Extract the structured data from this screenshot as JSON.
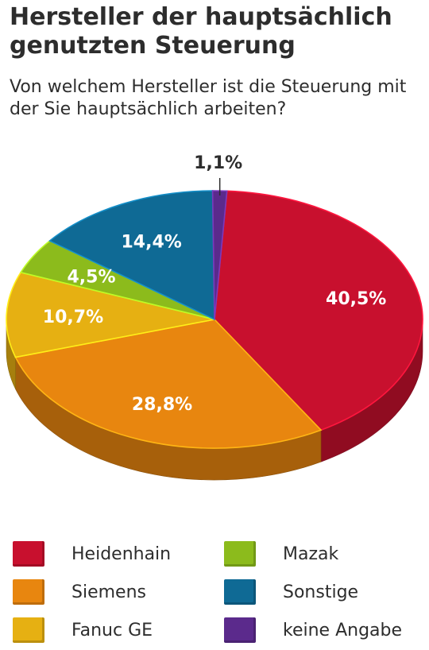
{
  "header": {
    "title": "Hersteller der hauptsächlich genutzten Steuerung",
    "subtitle": "Von welchem Hersteller ist die Steuerung mit der Sie hauptsächlich arbeiten?"
  },
  "chart_data": {
    "type": "pie",
    "title": "Hersteller der hauptsächlich genutzten Steuerung",
    "subtitle": "Von welchem Hersteller ist die Steuerung mit der Sie hauptsächlich arbeiten?",
    "legend_position": "bottom",
    "slices": [
      {
        "label": "Heidenhain",
        "value": 40.5,
        "display": "40,5%",
        "color": "#c8102e"
      },
      {
        "label": "Siemens",
        "value": 28.8,
        "display": "28,8%",
        "color": "#e8860f"
      },
      {
        "label": "Fanuc GE",
        "value": 10.7,
        "display": "10,7%",
        "color": "#e6b012"
      },
      {
        "label": "Mazak",
        "value": 4.5,
        "display": "4,5%",
        "color": "#8cbb1c"
      },
      {
        "label": "Sonstige",
        "value": 14.4,
        "display": "14,4%",
        "color": "#0f6a95"
      },
      {
        "label": "keine Angabe",
        "value": 1.1,
        "display": "1,1%",
        "color": "#5b2a8c"
      }
    ]
  }
}
